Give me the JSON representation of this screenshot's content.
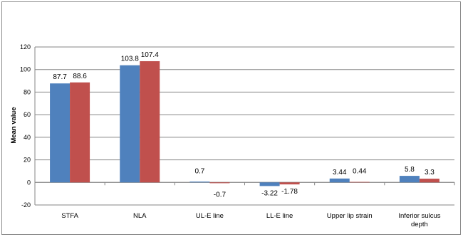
{
  "chart_data": {
    "type": "bar",
    "title": "",
    "xlabel": "",
    "ylabel": "Mean  value",
    "ylim": [
      -20,
      120
    ],
    "yticks": [
      -20,
      0,
      20,
      40,
      60,
      80,
      100,
      120
    ],
    "grid": true,
    "legend": "none",
    "categories": [
      "STFA",
      "NLA",
      "UL-E line",
      "LL-E line",
      "Upper lip strain",
      "Inferior sulcus depth"
    ],
    "series": [
      {
        "color": "#4f81bd",
        "values": [
          87.7,
          103.8,
          0.7,
          -3.22,
          3.44,
          5.8
        ],
        "labels": [
          "87.7",
          "103.8",
          "0.7",
          "-3.22",
          "3.44",
          "5.8"
        ]
      },
      {
        "color": "#c0504d",
        "values": [
          88.6,
          107.4,
          -0.7,
          -1.78,
          0.44,
          3.3
        ],
        "labels": [
          "88.6",
          "107.4",
          "-0.7",
          "-1.78",
          "0.44",
          "3.3"
        ]
      }
    ]
  }
}
